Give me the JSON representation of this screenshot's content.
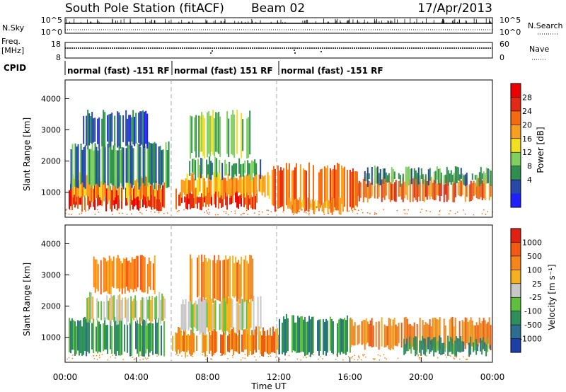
{
  "header": {
    "title": "South Pole Station (fitACF)",
    "beam": "Beam 02",
    "date": "17/Apr/2013"
  },
  "top_panels": {
    "nsky_label": "N.Sky",
    "nsky_ticks": [
      "10^5",
      "10^0"
    ],
    "nsearch_label": "N.Search",
    "nsearch_ticks": [
      "10^5",
      "10^0"
    ],
    "freq_label": "Freq.",
    "freq_unit": "[MHz]",
    "freq_ticks": [
      "18",
      "8"
    ],
    "nave_label": "Nave",
    "nave_ticks": [
      "60",
      "0"
    ],
    "cpid_label": "CPID",
    "cpid_segments": [
      {
        "label": "normal (fast) -151 RF",
        "start_h": 0,
        "end_h": 6
      },
      {
        "label": "normal (fast) 151 RF",
        "start_h": 6,
        "end_h": 12
      },
      {
        "label": "normal (fast) -151 RF",
        "start_h": 12,
        "end_h": 24
      }
    ]
  },
  "chart_data": [
    {
      "type": "heatmap",
      "ylabel": "Slant Range [km]",
      "xlim": [
        0,
        24
      ],
      "ylim": [
        200,
        4600
      ],
      "yticks": [
        "1000",
        "2000",
        "3000",
        "4000"
      ],
      "ytick_values": [
        1000,
        2000,
        3000,
        4000
      ],
      "colorbar": {
        "label": "Power [dB]",
        "ticks": [
          "4",
          "8",
          "12",
          "16",
          "20",
          "24",
          "28"
        ],
        "colors": [
          "#1f1fff",
          "#2848a8",
          "#2f8f4f",
          "#7fd060",
          "#f2df22",
          "#f7a020",
          "#f46a10",
          "#e22a14",
          "#ee0000"
        ]
      },
      "bands": [
        {
          "h0": 0.2,
          "h1": 5.6,
          "lo": 500,
          "hi": 1200,
          "c": 7
        },
        {
          "h0": 0.4,
          "h1": 5.4,
          "lo": 800,
          "hi": 1500,
          "c": 5
        },
        {
          "h0": 0.3,
          "h1": 5.8,
          "lo": 1200,
          "hi": 2500,
          "c": 2
        },
        {
          "h0": 1.0,
          "h1": 4.6,
          "lo": 2500,
          "hi": 3500,
          "c": 1
        },
        {
          "h0": 6.2,
          "h1": 10.8,
          "lo": 550,
          "hi": 1000,
          "c": 7
        },
        {
          "h0": 6.5,
          "h1": 11.5,
          "lo": 900,
          "hi": 1500,
          "c": 5
        },
        {
          "h0": 6.8,
          "h1": 11.0,
          "lo": 1500,
          "hi": 2000,
          "c": 2
        },
        {
          "h0": 7.0,
          "h1": 10.4,
          "lo": 2200,
          "hi": 3500,
          "c": 3
        },
        {
          "h0": 11.6,
          "h1": 16.4,
          "lo": 500,
          "hi": 1800,
          "c": 6
        },
        {
          "h0": 12.5,
          "h1": 15.5,
          "lo": 400,
          "hi": 700,
          "c": 5
        },
        {
          "h0": 16.4,
          "h1": 23.9,
          "lo": 800,
          "hi": 1400,
          "c": 6
        },
        {
          "h0": 16.8,
          "h1": 23.9,
          "lo": 1300,
          "hi": 1700,
          "c": 2
        }
      ]
    },
    {
      "type": "heatmap",
      "ylabel": "Slant Range [km]",
      "xlabel": "Time UT",
      "xlim": [
        0,
        24
      ],
      "ylim": [
        200,
        4600
      ],
      "xticks": [
        "00:00",
        "04:00",
        "08:00",
        "12:00",
        "16:00",
        "20:00",
        "00:00"
      ],
      "yticks": [
        "1000",
        "2000",
        "3000",
        "4000"
      ],
      "ytick_values": [
        1000,
        2000,
        3000,
        4000
      ],
      "colorbar": {
        "label": "Velocity [m s⁻¹]",
        "ticks": [
          "1000",
          "500",
          "100",
          "25",
          "-25",
          "-100",
          "-500",
          "-1000"
        ],
        "colors": [
          "#1e3ea8",
          "#2d6e8e",
          "#2f8f5a",
          "#5fc040",
          "#c8c8c8",
          "#f4b020",
          "#f4861a",
          "#f25a12",
          "#e02010"
        ]
      },
      "bands": [
        {
          "h0": 0.2,
          "h1": 5.6,
          "lo": 500,
          "hi": 1500,
          "c": 2
        },
        {
          "h0": 1.2,
          "h1": 5.6,
          "lo": 1500,
          "hi": 2300,
          "c": 4
        },
        {
          "h0": 1.5,
          "h1": 5.0,
          "lo": 2500,
          "hi": 3500,
          "c": 6
        },
        {
          "h0": 6.0,
          "h1": 12.0,
          "lo": 500,
          "hi": 1200,
          "c": 6
        },
        {
          "h0": 6.5,
          "h1": 11.0,
          "lo": 1200,
          "hi": 2200,
          "c": 4
        },
        {
          "h0": 7.0,
          "h1": 10.5,
          "lo": 2200,
          "hi": 3500,
          "c": 6
        },
        {
          "h0": 12.0,
          "h1": 16.0,
          "lo": 500,
          "hi": 1600,
          "c": 2
        },
        {
          "h0": 16.0,
          "h1": 23.9,
          "lo": 700,
          "hi": 1500,
          "c": 6
        },
        {
          "h0": 19.0,
          "h1": 23.9,
          "lo": 500,
          "hi": 900,
          "c": 2
        }
      ]
    }
  ]
}
